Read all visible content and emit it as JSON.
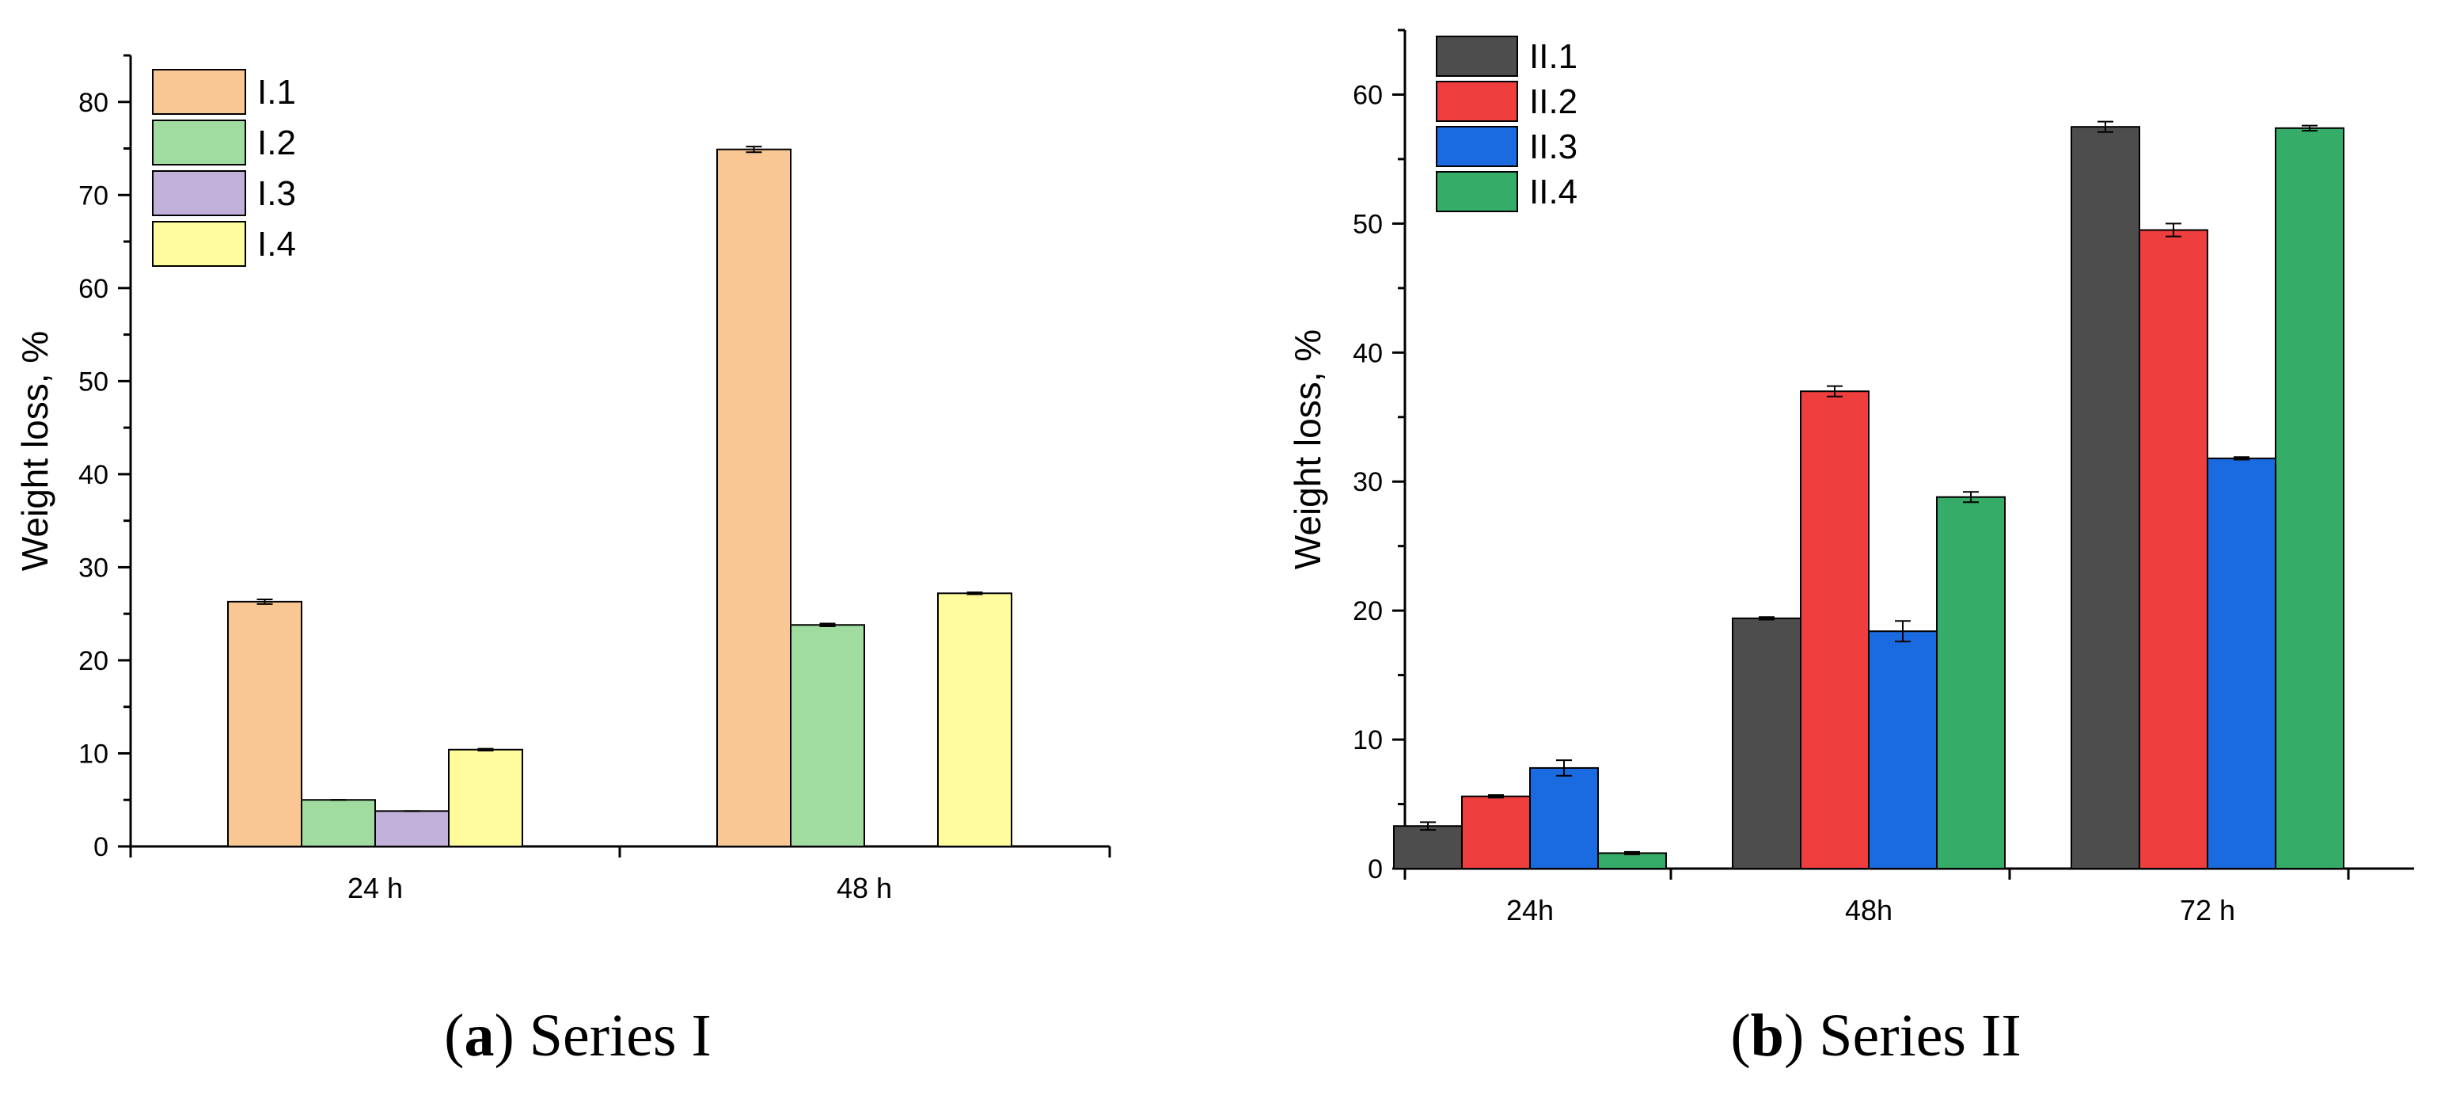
{
  "chart_data": [
    {
      "type": "bar",
      "panel": "a",
      "caption_letter": "a",
      "caption_text": "Series I",
      "categories": [
        "24 h",
        "48 h"
      ],
      "series": [
        {
          "name": "I.1",
          "values": [
            26.3,
            74.9
          ],
          "errors": [
            0.25,
            0.3
          ],
          "color": "#F9C794"
        },
        {
          "name": "I.2",
          "values": [
            5.0,
            23.8
          ],
          "errors": [
            0,
            0.15
          ],
          "color": "#A0DBA0"
        },
        {
          "name": "I.3",
          "values": [
            3.8,
            null
          ],
          "errors": [
            0,
            0
          ],
          "color": "#C1B1DA"
        },
        {
          "name": "I.4",
          "values": [
            10.4,
            27.2
          ],
          "errors": [
            0.1,
            0.1
          ],
          "color": "#FEFC9D"
        }
      ],
      "xlabel": "",
      "ylabel": "Weight loss, %",
      "ylim": [
        0,
        85
      ],
      "yticks": [
        0,
        10,
        20,
        30,
        40,
        50,
        60,
        70,
        80
      ],
      "legend": "top-left"
    },
    {
      "type": "bar",
      "panel": "b",
      "caption_letter": "b",
      "caption_text": "Series II",
      "categories": [
        "24h",
        "48h",
        "72 h"
      ],
      "series": [
        {
          "name": "II.1",
          "values": [
            3.3,
            19.4,
            57.5
          ],
          "errors": [
            0.3,
            0.1,
            0.4
          ],
          "color": "#4D4D4D"
        },
        {
          "name": "II.2",
          "values": [
            5.6,
            37.0,
            49.5
          ],
          "errors": [
            0.1,
            0.4,
            0.5
          ],
          "color": "#EE3E3E"
        },
        {
          "name": "II.3",
          "values": [
            7.8,
            18.4,
            31.8
          ],
          "errors": [
            0.6,
            0.8,
            0.1
          ],
          "color": "#1A6AE0"
        },
        {
          "name": "II.4",
          "values": [
            1.2,
            28.8,
            57.4
          ],
          "errors": [
            0.1,
            0.4,
            0.2
          ],
          "color": "#35AC68"
        }
      ],
      "xlabel": "",
      "ylabel": "Weight loss, %",
      "ylim": [
        0,
        65
      ],
      "yticks": [
        0,
        10,
        20,
        30,
        40,
        50,
        60
      ],
      "legend": "top-left"
    }
  ]
}
